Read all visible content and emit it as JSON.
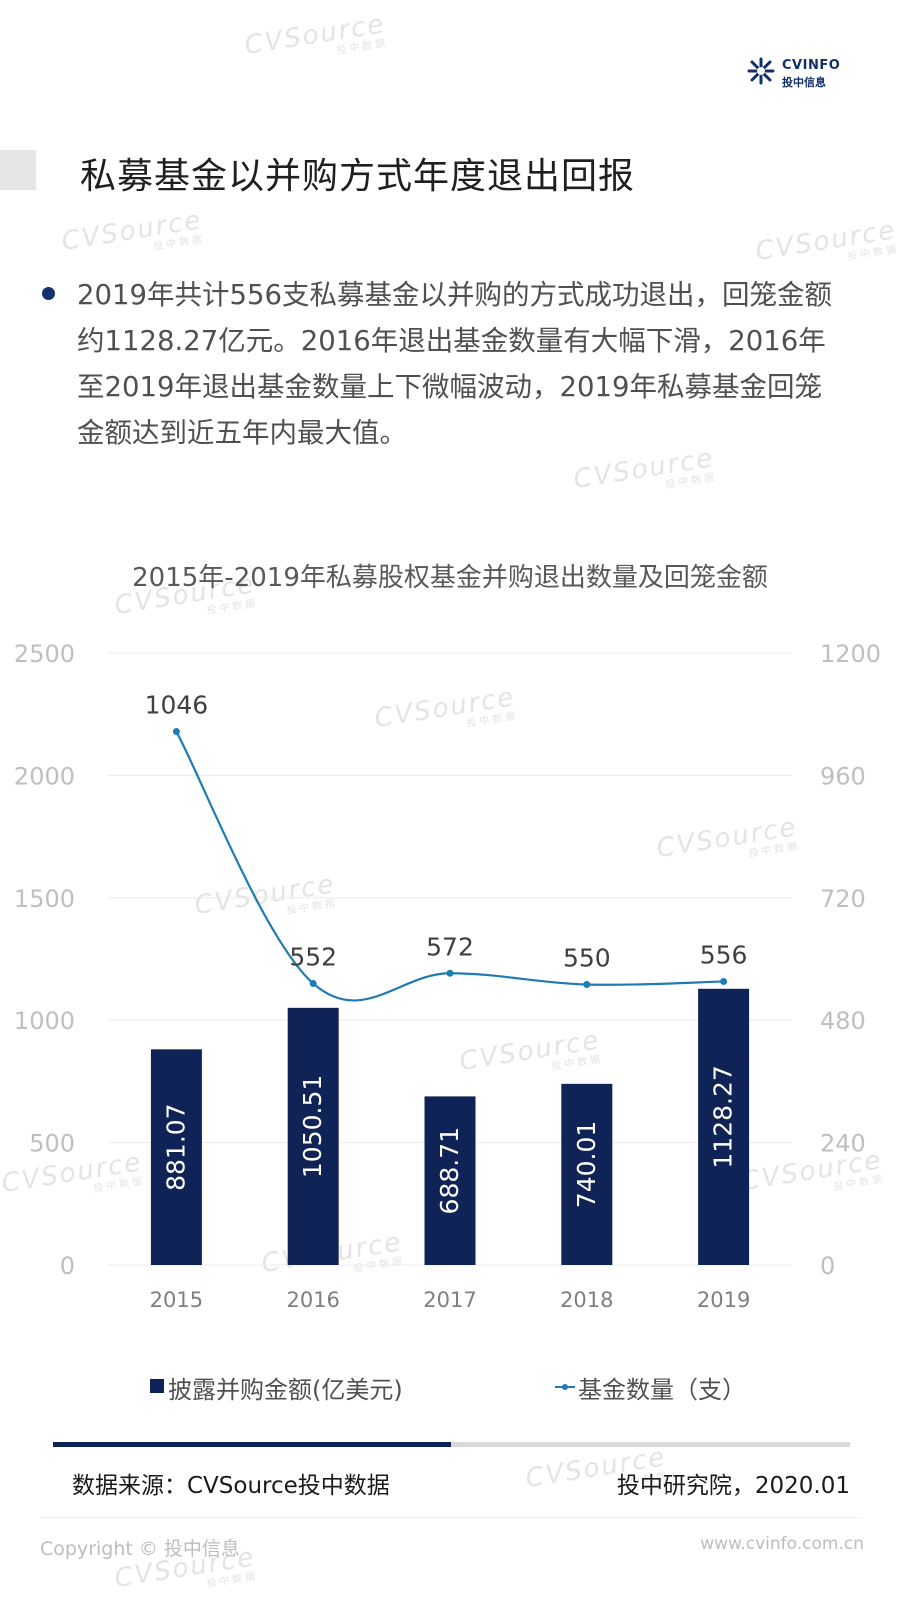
{
  "header": {
    "logo": {
      "brand": "CVINFO",
      "brand_cn": "投中信息"
    },
    "title": "私募基金以并购方式年度退出回报"
  },
  "summary": {
    "text": "2019年共计556支私募基金以并购的方式成功退出，回笼金额约1128.27亿元。2016年退出基金数量有大幅下滑，2016年至2019年退出基金数量上下微幅波动，2019年私募基金回笼金额达到近五年内最大值。"
  },
  "watermark": {
    "text": "CVSource",
    "subtext": "投中数据"
  },
  "chart_data": {
    "type": "bar",
    "title": "2015年-2019年私募股权基金并购退出数量及回笼金额",
    "categories": [
      "2015",
      "2016",
      "2017",
      "2018",
      "2019"
    ],
    "y_left_ticks": [
      "0",
      "500",
      "1000",
      "1500",
      "2000",
      "2500"
    ],
    "y_right_ticks": [
      "0",
      "240",
      "480",
      "720",
      "960",
      "1200"
    ],
    "ylim_left": [
      0,
      2500
    ],
    "ylim_right": [
      0,
      1200
    ],
    "grid": true,
    "legend_position": "bottom",
    "series": [
      {
        "name": "披露并购金额(亿美元)",
        "type": "bar",
        "axis": "left",
        "color": "#0f2357",
        "values": [
          881.07,
          1050.51,
          688.71,
          740.01,
          1128.27
        ],
        "labels": [
          "881.07",
          "1050.51",
          "688.71",
          "740.01",
          "1128.27"
        ]
      },
      {
        "name": "基金数量（支）",
        "type": "line",
        "axis": "right",
        "color": "#1f7bb3",
        "values": [
          1046,
          552,
          572,
          550,
          556
        ],
        "labels": [
          "1046",
          "552",
          "572",
          "550",
          "556"
        ]
      }
    ]
  },
  "footer": {
    "source": "数据来源：CVSource投中数据",
    "credit": "投中研究院，2020.01",
    "copyright": "Copyright © 投中信息",
    "website": "www.cvinfo.com.cn"
  }
}
